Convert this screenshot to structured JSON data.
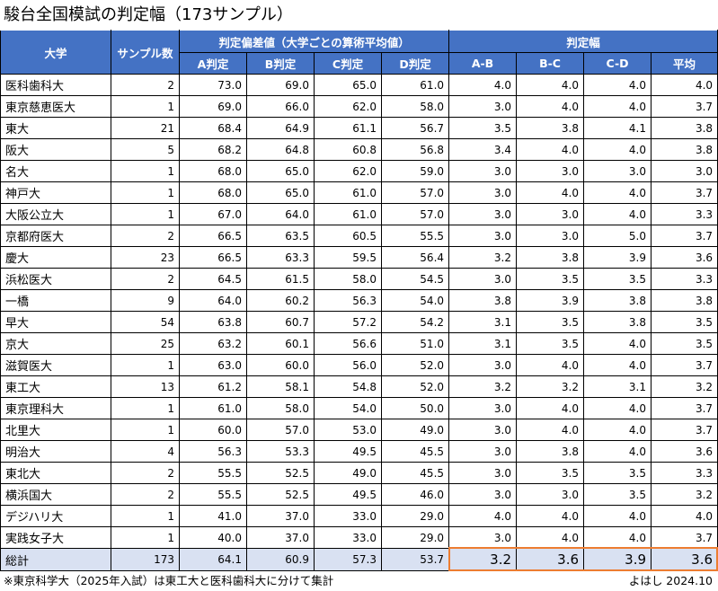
{
  "title": "駿台全国模試の判定幅（173サンプル）",
  "headers": {
    "univ": "大学",
    "samples": "サンプル数",
    "dev_group": "判定偏差値（大学ごとの算術平均値）",
    "range_group": "判定幅",
    "dev": [
      "A判定",
      "B判定",
      "C判定",
      "D判定"
    ],
    "range": [
      "A-B",
      "B-C",
      "C-D",
      "平均"
    ]
  },
  "rows": [
    [
      "医科歯科大",
      "2",
      "73.0",
      "69.0",
      "65.0",
      "61.0",
      "4.0",
      "4.0",
      "4.0",
      "4.0"
    ],
    [
      "東京慈恵医大",
      "1",
      "69.0",
      "66.0",
      "62.0",
      "58.0",
      "3.0",
      "4.0",
      "4.0",
      "3.7"
    ],
    [
      "東大",
      "21",
      "68.4",
      "64.9",
      "61.1",
      "56.7",
      "3.5",
      "3.8",
      "4.1",
      "3.8"
    ],
    [
      "阪大",
      "5",
      "68.2",
      "64.8",
      "60.8",
      "56.8",
      "3.4",
      "4.0",
      "4.0",
      "3.8"
    ],
    [
      "名大",
      "1",
      "68.0",
      "65.0",
      "62.0",
      "59.0",
      "3.0",
      "3.0",
      "3.0",
      "3.0"
    ],
    [
      "神戸大",
      "1",
      "68.0",
      "65.0",
      "61.0",
      "57.0",
      "3.0",
      "4.0",
      "4.0",
      "3.7"
    ],
    [
      "大阪公立大",
      "1",
      "67.0",
      "64.0",
      "61.0",
      "57.0",
      "3.0",
      "3.0",
      "4.0",
      "3.3"
    ],
    [
      "京都府医大",
      "2",
      "66.5",
      "63.5",
      "60.5",
      "55.5",
      "3.0",
      "3.0",
      "5.0",
      "3.7"
    ],
    [
      "慶大",
      "23",
      "66.5",
      "63.3",
      "59.5",
      "56.4",
      "3.2",
      "3.8",
      "3.9",
      "3.6"
    ],
    [
      "浜松医大",
      "2",
      "64.5",
      "61.5",
      "58.0",
      "54.5",
      "3.0",
      "3.5",
      "3.5",
      "3.3"
    ],
    [
      "一橋",
      "9",
      "64.0",
      "60.2",
      "56.3",
      "54.0",
      "3.8",
      "3.9",
      "3.8",
      "3.8"
    ],
    [
      "早大",
      "54",
      "63.8",
      "60.7",
      "57.2",
      "54.2",
      "3.1",
      "3.5",
      "3.8",
      "3.5"
    ],
    [
      "京大",
      "25",
      "63.2",
      "60.1",
      "56.6",
      "51.0",
      "3.1",
      "3.5",
      "4.0",
      "3.5"
    ],
    [
      "滋賀医大",
      "1",
      "63.0",
      "60.0",
      "56.0",
      "52.0",
      "3.0",
      "4.0",
      "4.0",
      "3.7"
    ],
    [
      "東工大",
      "13",
      "61.2",
      "58.1",
      "54.8",
      "52.0",
      "3.2",
      "3.2",
      "3.1",
      "3.2"
    ],
    [
      "東京理科大",
      "1",
      "61.0",
      "58.0",
      "54.0",
      "50.0",
      "3.0",
      "4.0",
      "4.0",
      "3.7"
    ],
    [
      "北里大",
      "1",
      "60.0",
      "57.0",
      "53.0",
      "49.0",
      "3.0",
      "4.0",
      "4.0",
      "3.7"
    ],
    [
      "明治大",
      "4",
      "56.3",
      "53.3",
      "49.5",
      "45.5",
      "3.0",
      "3.8",
      "4.0",
      "3.6"
    ],
    [
      "東北大",
      "2",
      "55.5",
      "52.5",
      "49.0",
      "45.5",
      "3.0",
      "3.5",
      "3.5",
      "3.3"
    ],
    [
      "横浜国大",
      "2",
      "55.5",
      "52.5",
      "49.5",
      "46.0",
      "3.0",
      "3.0",
      "3.5",
      "3.2"
    ],
    [
      "デジハリ大",
      "1",
      "41.0",
      "37.0",
      "33.0",
      "29.0",
      "4.0",
      "4.0",
      "4.0",
      "4.0"
    ],
    [
      "実践女子大",
      "1",
      "40.0",
      "37.0",
      "33.0",
      "29.0",
      "3.0",
      "4.0",
      "4.0",
      "3.7"
    ]
  ],
  "total": [
    "総計",
    "173",
    "64.1",
    "60.9",
    "57.3",
    "53.7",
    "3.2",
    "3.6",
    "3.9",
    "3.6"
  ],
  "note": "※東京科学大（2025年入試）は東工大と医科歯科大に分けて集計",
  "signature": "よはし 2024.10",
  "colors": {
    "header": "#4472C4",
    "total_row": "#D9E1F2",
    "highlight": "#ED7D31"
  }
}
